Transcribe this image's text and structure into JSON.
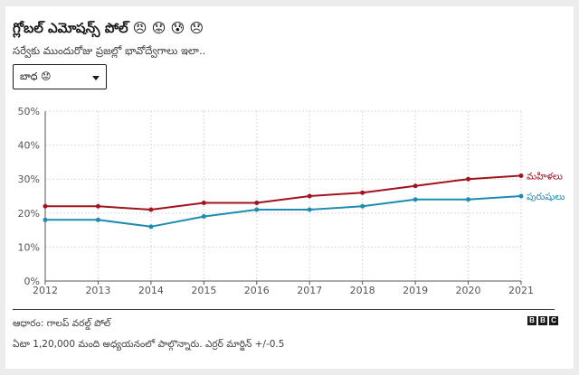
{
  "header": {
    "title": "గ్లోబల్ ఎమోషన్స్ పోల్ 😠 😟 😰 😞",
    "subtitle": "సర్వేకు ముందురోజు ప్రజల్లో భావోద్వేగాలు ఇలా.."
  },
  "dropdown": {
    "selected": "బాధ 😟"
  },
  "chart_data": {
    "type": "line",
    "x": [
      2012,
      2013,
      2014,
      2015,
      2016,
      2017,
      2018,
      2019,
      2020,
      2021
    ],
    "ylim": [
      0,
      50
    ],
    "yticks": [
      "0%",
      "10%",
      "20%",
      "30%",
      "40%",
      "50%"
    ],
    "yticks_values": [
      0,
      10,
      20,
      30,
      40,
      50
    ],
    "grid": true,
    "legend": "inline-right",
    "series": [
      {
        "name": "మహిళలు",
        "color": "#a0141e",
        "values": [
          22,
          22,
          21,
          23,
          23,
          25,
          26,
          28,
          30,
          31
        ]
      },
      {
        "name": "పురుషులు",
        "color": "#1e8bb0",
        "values": [
          18,
          18,
          16,
          19,
          21,
          21,
          22,
          24,
          24,
          25
        ]
      }
    ]
  },
  "footer": {
    "source": "ఆధారం: గాలప్ వరల్డ్ పోల్",
    "note": "ఏటా 1,20,000 మంది అధ్యయనంలో పాల్గొన్నారు. ఎర్రర్ మార్జిన్ +/-0.5",
    "logo_letters": [
      "B",
      "B",
      "C"
    ]
  }
}
